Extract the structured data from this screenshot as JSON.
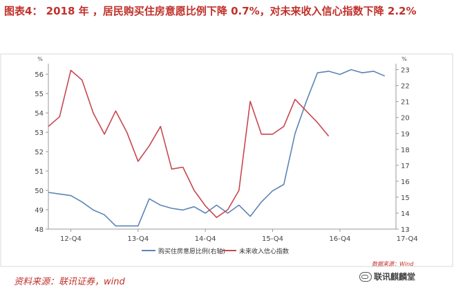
{
  "header": {
    "title": "图表4：  2018 年 ，居民购买住房意愿比例下降 0.7%，对未来收入信心指数下降 2.2%"
  },
  "footer": {
    "source": "资料来源：联讯证券，wind",
    "data_source_note": "数据来源：Wind",
    "watermark": "联讯麒麟堂"
  },
  "colors": {
    "title": "#c0312b",
    "series_blue": "#5b84b6",
    "series_red": "#c8464e",
    "axis": "#999999"
  },
  "chart_data": {
    "type": "line",
    "x_ticks": [
      "12-Q4",
      "13-Q4",
      "14-Q4",
      "15-Q4",
      "16-Q4",
      "17-Q4"
    ],
    "y_left": {
      "ticks": [
        48,
        49,
        50,
        51,
        52,
        53,
        54,
        55,
        56
      ],
      "unit": "%",
      "lim": [
        48,
        56.4
      ]
    },
    "y_right": {
      "ticks": [
        13,
        14,
        15,
        16,
        17,
        18,
        19,
        20,
        21,
        22,
        23
      ],
      "unit": "%",
      "lim": [
        13,
        23.2
      ]
    },
    "legend_position": "bottom",
    "series": [
      {
        "name": "购买住房意愿比例(右轴)",
        "axis": "right",
        "color": "#5b84b6",
        "points": [
          [
            0,
            15.3
          ],
          [
            0.5,
            15.2
          ],
          [
            1,
            15.1
          ],
          [
            1.5,
            14.7
          ],
          [
            2,
            14.2
          ],
          [
            2.5,
            13.9
          ],
          [
            3,
            13.2
          ],
          [
            3.5,
            13.2
          ],
          [
            4,
            13.2
          ],
          [
            4.5,
            14.9
          ],
          [
            5,
            14.5
          ],
          [
            5.5,
            14.3
          ],
          [
            6,
            14.2
          ],
          [
            6.5,
            14.4
          ],
          [
            7,
            14.0
          ],
          [
            7.5,
            14.5
          ],
          [
            8,
            14.0
          ],
          [
            8.5,
            14.5
          ],
          [
            9,
            13.8
          ],
          [
            9.5,
            14.7
          ],
          [
            10,
            15.4
          ],
          [
            10.5,
            15.8
          ],
          [
            11,
            19.0
          ],
          [
            11.5,
            21.0
          ],
          [
            12,
            22.8
          ],
          [
            12.5,
            22.9
          ],
          [
            13,
            22.7
          ],
          [
            13.5,
            23.0
          ],
          [
            14,
            22.8
          ],
          [
            14.5,
            22.9
          ],
          [
            15,
            22.6
          ]
        ]
      },
      {
        "name": "未来收入信心指数",
        "axis": "left",
        "color": "#c8464e",
        "points": [
          [
            0,
            53.3
          ],
          [
            0.5,
            53.8
          ],
          [
            1,
            56.2
          ],
          [
            1.5,
            55.7
          ],
          [
            2,
            54.0
          ],
          [
            2.5,
            52.9
          ],
          [
            3,
            54.1
          ],
          [
            3.5,
            53.0
          ],
          [
            4,
            51.5
          ],
          [
            4.5,
            52.3
          ],
          [
            5,
            53.3
          ],
          [
            5.5,
            51.1
          ],
          [
            6,
            51.2
          ],
          [
            6.5,
            50.0
          ],
          [
            7,
            49.2
          ],
          [
            7.5,
            48.6
          ],
          [
            8,
            49.0
          ],
          [
            8.5,
            50.0
          ],
          [
            9,
            54.6
          ],
          [
            9.5,
            52.9
          ],
          [
            10,
            52.9
          ],
          [
            10.5,
            53.3
          ],
          [
            11,
            54.7
          ],
          [
            11.5,
            54.1
          ],
          [
            12,
            53.5
          ],
          [
            12.5,
            52.8
          ]
        ]
      }
    ]
  }
}
